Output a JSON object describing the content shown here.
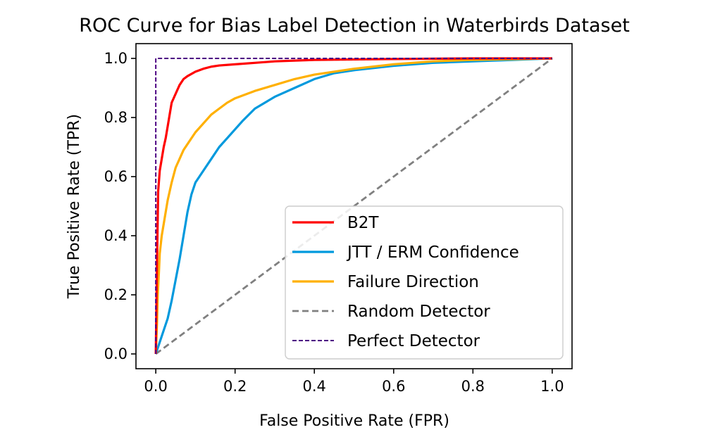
{
  "chart_data": {
    "type": "line",
    "title": "ROC Curve for Bias Label Detection in Waterbirds Dataset",
    "xlabel": "False Positive Rate (FPR)",
    "ylabel": "True Positive Rate (TPR)",
    "xlim": [
      -0.05,
      1.05
    ],
    "ylim": [
      -0.05,
      1.05
    ],
    "xticks": [
      "0.0",
      "0.2",
      "0.4",
      "0.6",
      "0.8",
      "1.0"
    ],
    "yticks": [
      "0.0",
      "0.2",
      "0.4",
      "0.6",
      "0.8",
      "1.0"
    ],
    "grid": false,
    "legend_position": "lower-right",
    "series": [
      {
        "name": "B2T",
        "color": "#ff0000",
        "style": "solid",
        "x": [
          0,
          0.003,
          0.006,
          0.01,
          0.015,
          0.02,
          0.025,
          0.03,
          0.035,
          0.04,
          0.05,
          0.06,
          0.07,
          0.08,
          0.1,
          0.12,
          0.14,
          0.16,
          0.2,
          0.25,
          0.3,
          0.4,
          0.6,
          0.8,
          1.0
        ],
        "y": [
          0,
          0.3,
          0.55,
          0.62,
          0.66,
          0.7,
          0.73,
          0.77,
          0.81,
          0.85,
          0.88,
          0.91,
          0.93,
          0.94,
          0.955,
          0.965,
          0.972,
          0.976,
          0.98,
          0.985,
          0.99,
          0.995,
          0.998,
          1.0,
          1.0
        ]
      },
      {
        "name": "JTT / ERM Confidence",
        "color": "#0099dd",
        "style": "solid",
        "x": [
          0,
          0.005,
          0.01,
          0.015,
          0.02,
          0.03,
          0.04,
          0.05,
          0.06,
          0.07,
          0.08,
          0.09,
          0.1,
          0.12,
          0.14,
          0.16,
          0.18,
          0.2,
          0.22,
          0.25,
          0.3,
          0.35,
          0.4,
          0.45,
          0.5,
          0.6,
          0.7,
          0.8,
          0.9,
          1.0
        ],
        "y": [
          0,
          0.02,
          0.04,
          0.06,
          0.08,
          0.12,
          0.18,
          0.25,
          0.32,
          0.4,
          0.48,
          0.54,
          0.58,
          0.62,
          0.66,
          0.7,
          0.73,
          0.76,
          0.79,
          0.83,
          0.87,
          0.9,
          0.93,
          0.95,
          0.96,
          0.975,
          0.985,
          0.99,
          0.995,
          1.0
        ]
      },
      {
        "name": "Failure Direction",
        "color": "#ffb000",
        "style": "solid",
        "x": [
          0,
          0.003,
          0.005,
          0.008,
          0.01,
          0.015,
          0.02,
          0.025,
          0.03,
          0.04,
          0.05,
          0.06,
          0.07,
          0.08,
          0.09,
          0.1,
          0.12,
          0.14,
          0.16,
          0.18,
          0.2,
          0.25,
          0.3,
          0.35,
          0.4,
          0.5,
          0.6,
          0.7,
          0.8,
          1.0
        ],
        "y": [
          0,
          0.1,
          0.2,
          0.28,
          0.34,
          0.4,
          0.44,
          0.48,
          0.52,
          0.58,
          0.63,
          0.66,
          0.69,
          0.71,
          0.73,
          0.75,
          0.78,
          0.81,
          0.83,
          0.85,
          0.865,
          0.89,
          0.91,
          0.93,
          0.945,
          0.965,
          0.98,
          0.99,
          0.995,
          1.0
        ]
      },
      {
        "name": "Random Detector",
        "color": "#808080",
        "style": "dashed",
        "x": [
          0,
          1
        ],
        "y": [
          0,
          1
        ]
      },
      {
        "name": "Perfect Detector",
        "color": "#4b0082",
        "style": "dashed-thin",
        "x": [
          0,
          0,
          1
        ],
        "y": [
          0,
          1,
          1
        ]
      }
    ]
  }
}
